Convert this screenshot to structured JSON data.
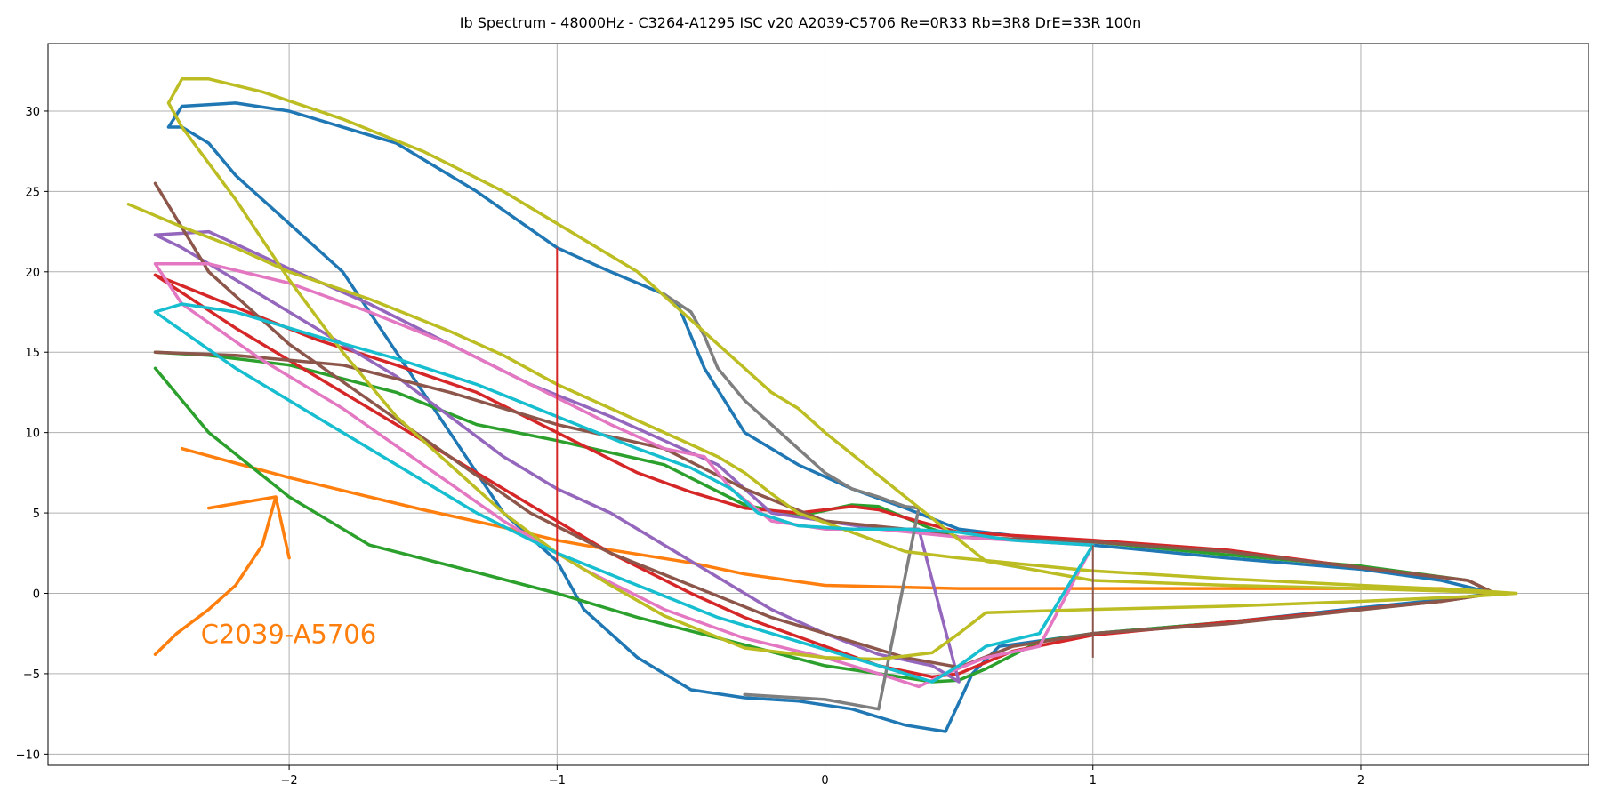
{
  "chart_data": {
    "type": "line",
    "title": "Ib Spectrum - 48000Hz - C3264-A1295 ISC v20 A2039-C5706 Re=0R33 Rb=3R8 DrE=33R 100n",
    "xlabel": "",
    "ylabel": "",
    "xlim": [
      -2.9,
      2.85
    ],
    "ylim": [
      -10.7,
      34.2
    ],
    "xticks": [
      -2,
      -1,
      0,
      1,
      2
    ],
    "yticks": [
      -10,
      -5,
      0,
      5,
      10,
      15,
      20,
      25,
      30
    ],
    "grid": true,
    "series": [
      {
        "color": "#1f77b4",
        "x": [
          -2.45,
          -2.4,
          -2.2,
          -2.0,
          -1.6,
          -1.3,
          -1.0,
          -0.8,
          -0.6,
          -0.55,
          -0.45,
          -0.3,
          -0.1,
          0.1,
          0.3,
          0.5,
          1.0,
          1.5,
          2.0,
          2.3,
          2.45,
          2.5,
          2.3,
          2.0,
          1.5,
          1.0,
          0.65,
          0.55,
          0.45,
          0.3,
          0.1,
          -0.1,
          -0.3,
          -0.5,
          -0.7,
          -0.9,
          -1.0,
          -1.2,
          -1.4,
          -1.6,
          -1.8,
          -2.0,
          -2.2,
          -2.3,
          -2.4,
          -2.45
        ],
        "y": [
          29,
          30.3,
          30.5,
          30,
          28,
          25,
          21.5,
          20,
          18.6,
          18,
          14,
          10,
          8,
          6.5,
          5.3,
          4,
          3,
          2.2,
          1.5,
          0.8,
          0.2,
          0,
          -0.4,
          -0.9,
          -1.8,
          -2.5,
          -3.3,
          -5,
          -8.6,
          -8.2,
          -7.2,
          -6.7,
          -6.5,
          -6,
          -4,
          -1,
          2,
          5,
          10,
          15,
          20,
          23,
          26,
          28,
          29,
          29
        ]
      },
      {
        "color": "#ff7f0e",
        "x": [
          -2.4,
          -2.2,
          -2.0,
          -1.8,
          -1.5,
          -1.2,
          -1.0,
          -0.8,
          -0.5,
          -0.3,
          0,
          0.5,
          1.0,
          1.5,
          2.0,
          2.3,
          2.45
        ],
        "y": [
          9,
          8.1,
          7.2,
          6.4,
          5.2,
          4.1,
          3.3,
          2.7,
          1.9,
          1.2,
          0.5,
          0.3,
          0.3,
          0.3,
          0.3,
          0.3,
          0.1
        ]
      },
      {
        "color": "#2ca02c",
        "x": [
          -2.5,
          -2.3,
          -2.0,
          -1.6,
          -1.3,
          -1.0,
          -0.6,
          -0.3,
          -0.1,
          0.1,
          0.2,
          0.4,
          0.5,
          1.0,
          1.5,
          2.0,
          2.4,
          2.5,
          2.3,
          1.5,
          1.0,
          0.8,
          0.6,
          0.5,
          0.4,
          0.2,
          0,
          -0.3,
          -0.7,
          -1.0,
          -1.3,
          -1.7,
          -2.0,
          -2.3,
          -2.5
        ],
        "y": [
          15,
          14.8,
          14.2,
          12.5,
          10.5,
          9.5,
          8,
          5.5,
          4.8,
          5.5,
          5.4,
          4,
          3.5,
          3.2,
          2.4,
          1.7,
          0.8,
          0,
          -0.5,
          -1.8,
          -2.5,
          -3,
          -4.7,
          -5.4,
          -5.5,
          -5,
          -4.5,
          -3.2,
          -1.5,
          0,
          1.3,
          3,
          6,
          10,
          14
        ]
      },
      {
        "color": "#d62728",
        "x": [
          -2.5,
          -2.2,
          -1.9,
          -1.6,
          -1.3,
          -1.0,
          -0.7,
          -0.5,
          -0.3,
          -0.1,
          0.1,
          0.2,
          0.3,
          0.5,
          1.0,
          1.5,
          2.0,
          2.4,
          2.5,
          2.3,
          1.5,
          1.0,
          0.7,
          0.5,
          0.4,
          0.2,
          0,
          -0.3,
          -0.5,
          -0.8,
          -1.0,
          -1.3,
          -1.6,
          -1.9,
          -2.2,
          -2.5
        ],
        "y": [
          19.8,
          17.8,
          15.8,
          14.2,
          12.5,
          10,
          7.5,
          6.3,
          5.3,
          5,
          5.4,
          5.2,
          4.7,
          3.8,
          3.3,
          2.7,
          1.6,
          0.8,
          0,
          -0.5,
          -1.8,
          -2.6,
          -3.6,
          -5,
          -5.2,
          -4.5,
          -3.3,
          -1.5,
          0,
          2.5,
          4.5,
          7.5,
          10.5,
          13.5,
          16.5,
          19.8
        ]
      },
      {
        "color": "#9467bd",
        "x": [
          -2.5,
          -2.3,
          -2.0,
          -1.7,
          -1.4,
          -1.1,
          -0.8,
          -0.6,
          -0.4,
          -0.2,
          0,
          0.2,
          0.35,
          0.5,
          0.4,
          0.2,
          0,
          -0.2,
          -0.4,
          -0.6,
          -0.8,
          -1.0,
          -1.2,
          -1.4,
          -1.6,
          -1.8,
          -2.0,
          -2.2,
          -2.4,
          -2.5
        ],
        "y": [
          22.3,
          22.5,
          20.2,
          18,
          15.5,
          13,
          11,
          9.5,
          8,
          5,
          4.5,
          4,
          4,
          -5.5,
          -4.5,
          -3.8,
          -2.5,
          -1,
          1,
          3,
          5,
          6.5,
          8.5,
          11,
          13.5,
          15.5,
          17.5,
          19.5,
          21.5,
          22.3
        ]
      },
      {
        "color": "#8c564b",
        "x": [
          -2.5,
          -2.2,
          -1.8,
          -1.4,
          -1.0,
          -0.6,
          -0.3,
          0,
          0.3,
          0.5,
          1.0,
          1.5,
          2.0,
          2.4,
          2.5,
          2.3,
          1.5,
          1.0,
          0.7,
          0.5,
          0.3,
          0.1,
          -0.2,
          -0.5,
          -0.8,
          -1.1,
          -1.4,
          -1.7,
          -2.0,
          -2.3,
          -2.5
        ],
        "y": [
          15,
          14.8,
          14.2,
          12.5,
          10.5,
          9,
          6.5,
          4.5,
          4,
          3.5,
          3.2,
          2.6,
          1.6,
          0.8,
          0,
          -0.5,
          -1.9,
          -2.5,
          -3.3,
          -4.6,
          -4,
          -3,
          -1.5,
          0.5,
          2.5,
          5,
          8.5,
          12,
          15.5,
          20,
          25.5
        ]
      },
      {
        "color": "#e377c2",
        "x": [
          -2.5,
          -2.3,
          -2.0,
          -1.7,
          -1.4,
          -1.1,
          -0.8,
          -0.6,
          -0.45,
          -0.35,
          -0.2,
          0,
          0.2,
          0.5,
          1.0,
          0.8,
          0.6,
          0.45,
          0.35,
          0.2,
          0,
          -0.3,
          -0.6,
          -0.9,
          -1.2,
          -1.5,
          -1.8,
          -2.1,
          -2.4,
          -2.5
        ],
        "y": [
          20.5,
          20.5,
          19.3,
          17.5,
          15.5,
          13,
          10.5,
          9,
          8.5,
          6.5,
          4.5,
          4,
          4,
          3.5,
          3,
          -3.3,
          -4,
          -5,
          -5.8,
          -5,
          -4,
          -2.8,
          -1,
          1.5,
          4.5,
          8,
          11.5,
          14.5,
          18,
          20.5
        ]
      },
      {
        "color": "#7f7f7f",
        "x": [
          -0.6,
          -0.5,
          -0.45,
          -0.4,
          -0.3,
          -0.2,
          -0.1,
          0,
          0.1,
          0.2,
          0.3,
          0.35,
          0.2,
          0,
          -0.2,
          -0.3
        ],
        "y": [
          18.6,
          17.5,
          16,
          14,
          12,
          10.5,
          9,
          7.5,
          6.5,
          6,
          5.4,
          5.3,
          -7.2,
          -6.6,
          -6.4,
          -6.3
        ]
      },
      {
        "color": "#bcbd22",
        "x": [
          -2.6,
          -2.4,
          -2.2,
          -2.0,
          -1.7,
          -1.4,
          -1.2,
          -1.0,
          -0.8,
          -0.6,
          -0.4,
          -0.3,
          -0.2,
          -0.1,
          0.1,
          0.3,
          0.5,
          1.0,
          1.5,
          2.0,
          2.4,
          2.58,
          2.4,
          2.0,
          1.5,
          1.0,
          0.6,
          0.5,
          0.4,
          0.2,
          0,
          -0.3,
          -0.6,
          -0.8,
          -1.0,
          -1.2,
          -1.4,
          -1.6,
          -1.8,
          -2.0,
          -2.2,
          -2.4,
          -2.45,
          -2.4,
          -2.3,
          -2.1,
          -1.8,
          -1.5,
          -1.2,
          -1.0,
          -0.7,
          -0.5,
          -0.3,
          -0.2,
          -0.1,
          0,
          0.3,
          0.6,
          1.0,
          1.5,
          2.0,
          2.4,
          2.58
        ],
        "y": [
          24.2,
          22.8,
          21.5,
          20,
          18.3,
          16.3,
          14.8,
          13,
          11.5,
          10,
          8.5,
          7.5,
          6.2,
          5,
          3.8,
          2.6,
          2.2,
          1.4,
          0.9,
          0.5,
          0.2,
          0,
          -0.2,
          -0.5,
          -0.8,
          -1,
          -1.2,
          -2.5,
          -3.7,
          -4.1,
          -4,
          -3.4,
          -1.4,
          0.5,
          2.5,
          5,
          8,
          11,
          15,
          19.5,
          24.5,
          29,
          30.5,
          32,
          32,
          31.2,
          29.5,
          27.5,
          25,
          23,
          20,
          17,
          14,
          12.5,
          11.5,
          10,
          6,
          2,
          0.8,
          0.5,
          0.3,
          0.1,
          0
        ]
      },
      {
        "color": "#17becf",
        "x": [
          -2.5,
          -2.4,
          -2.2,
          -1.9,
          -1.6,
          -1.3,
          -1.0,
          -0.7,
          -0.5,
          -0.35,
          -0.25,
          -0.1,
          0.1,
          0.3,
          0.5,
          0.7,
          1.0,
          0.8,
          0.6,
          0.5,
          0.4,
          0.3,
          0.1,
          -0.1,
          -0.4,
          -0.7,
          -1.0,
          -1.3,
          -1.6,
          -1.9,
          -2.2,
          -2.5
        ],
        "y": [
          17.5,
          18,
          17.5,
          16,
          14.6,
          13,
          11,
          9,
          7.8,
          6.5,
          5,
          4.2,
          4,
          4,
          3.8,
          3.3,
          3,
          -2.5,
          -3.3,
          -4.5,
          -5.5,
          -5,
          -4,
          -3,
          -1.5,
          0.5,
          2.5,
          5,
          8,
          11,
          14,
          17.5
        ]
      }
    ],
    "spikes": [
      {
        "color": "#d62728",
        "x": -1.0,
        "y": [
          2,
          21.5
        ]
      },
      {
        "color": "#8c564b",
        "x": 1.0,
        "y": [
          -4,
          3
        ]
      }
    ],
    "annotations": [
      {
        "text": "C2039-A5706",
        "color": "#ff7f0e",
        "x": -2.33,
        "y": -3.1
      }
    ],
    "arrow": {
      "color": "#ff7f0e",
      "x": [
        -2.5,
        -2.42,
        -2.3,
        -2.2,
        -2.1,
        -2.05
      ],
      "y": [
        -3.8,
        -2.5,
        -1.0,
        0.5,
        3.0,
        6.0
      ],
      "head_x": [
        -2.3,
        -2.05,
        -2.0
      ],
      "head_y": [
        5.3,
        6.0,
        2.2
      ]
    }
  }
}
